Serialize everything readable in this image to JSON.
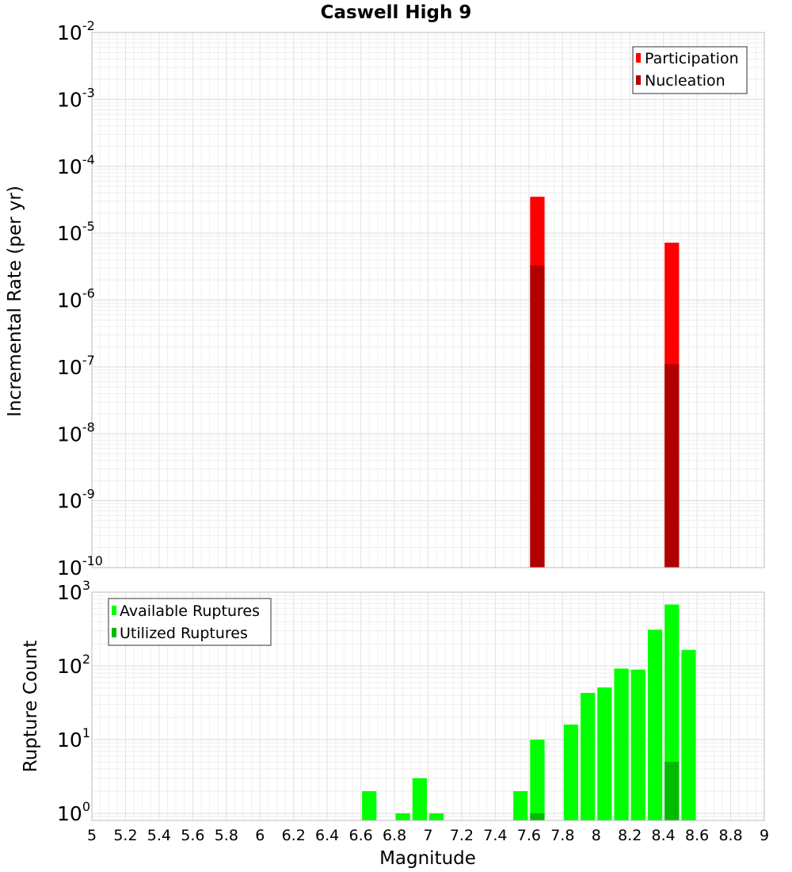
{
  "chart_data": [
    {
      "type": "bar",
      "title": "Caswell High 9",
      "xlabel": "Magnitude",
      "ylabel": "Incremental Rate (per yr)",
      "yscale": "log",
      "ylim": [
        1e-10,
        0.01
      ],
      "xlim": [
        5,
        9
      ],
      "ytick_exponents": [
        -10,
        -9,
        -8,
        -7,
        -6,
        -5,
        -4,
        -3,
        -2
      ],
      "legend_position": "top-right",
      "series": [
        {
          "name": "Participation",
          "color": "#ff0000",
          "x": [
            7.65,
            8.45
          ],
          "values": [
            3.5e-05,
            7.2e-06
          ]
        },
        {
          "name": "Nucleation",
          "color": "#b00000",
          "x": [
            7.65,
            8.45
          ],
          "values": [
            3.3e-06,
            1.1e-07
          ]
        }
      ]
    },
    {
      "type": "bar",
      "title": "",
      "xlabel": "Magnitude",
      "ylabel": "Rupture Count",
      "yscale": "log",
      "ylim": [
        0.8,
        1000
      ],
      "xlim": [
        5,
        9
      ],
      "ytick_exponents": [
        0,
        1,
        2,
        3
      ],
      "xticks": [
        "5",
        "5.2",
        "5.4",
        "5.6",
        "5.8",
        "6",
        "6.2",
        "6.4",
        "6.6",
        "6.8",
        "7",
        "7.2",
        "7.4",
        "7.6",
        "7.8",
        "8",
        "8.2",
        "8.4",
        "8.6",
        "8.8",
        "9"
      ],
      "legend_position": "top-left",
      "series": [
        {
          "name": "Available Ruptures",
          "color": "#00ff00",
          "x": [
            6.65,
            6.85,
            6.95,
            7.05,
            7.55,
            7.65,
            7.85,
            7.95,
            8.05,
            8.15,
            8.25,
            8.35,
            8.45,
            8.55
          ],
          "values": [
            2,
            1,
            3,
            1,
            2,
            10,
            16,
            43,
            51,
            92,
            89,
            310,
            680,
            165
          ]
        },
        {
          "name": "Utilized Ruptures",
          "color": "#00bb00",
          "x": [
            7.65,
            8.45
          ],
          "values": [
            1,
            5
          ]
        }
      ]
    }
  ]
}
